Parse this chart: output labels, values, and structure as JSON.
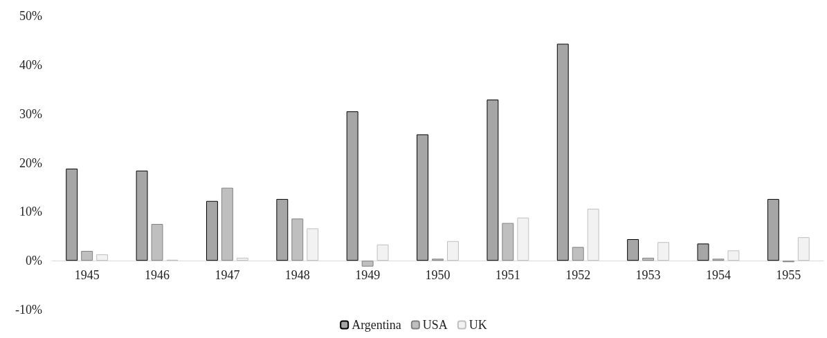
{
  "chart_data": {
    "type": "bar",
    "categories": [
      "1945",
      "1946",
      "1947",
      "1948",
      "1949",
      "1950",
      "1951",
      "1952",
      "1953",
      "1954",
      "1955"
    ],
    "series": [
      {
        "name": "Argentina",
        "color": "#a6a6a6",
        "values": [
          18.8,
          18.4,
          12.2,
          12.6,
          30.5,
          25.8,
          32.9,
          44.3,
          4.4,
          3.5,
          12.6
        ]
      },
      {
        "name": "USA",
        "color": "#bfbfbf",
        "values": [
          2.0,
          7.5,
          14.9,
          8.6,
          -1.2,
          0.4,
          7.7,
          2.8,
          0.6,
          0.4,
          -0.3
        ]
      },
      {
        "name": "UK",
        "color": "#f2f2f2",
        "values": [
          1.3,
          0.2,
          0.6,
          6.6,
          3.3,
          4.0,
          8.8,
          10.6,
          3.8,
          2.1,
          4.8
        ]
      }
    ],
    "ylim": [
      -10,
      50
    ],
    "yticks": [
      {
        "value": -10,
        "label": "-10%"
      },
      {
        "value": 0,
        "label": "0%"
      },
      {
        "value": 10,
        "label": "10%"
      },
      {
        "value": 20,
        "label": "20%"
      },
      {
        "value": 30,
        "label": "30%"
      },
      {
        "value": 40,
        "label": "40%"
      },
      {
        "value": 50,
        "label": "50%"
      }
    ],
    "grid": false,
    "legend": "bottom"
  }
}
